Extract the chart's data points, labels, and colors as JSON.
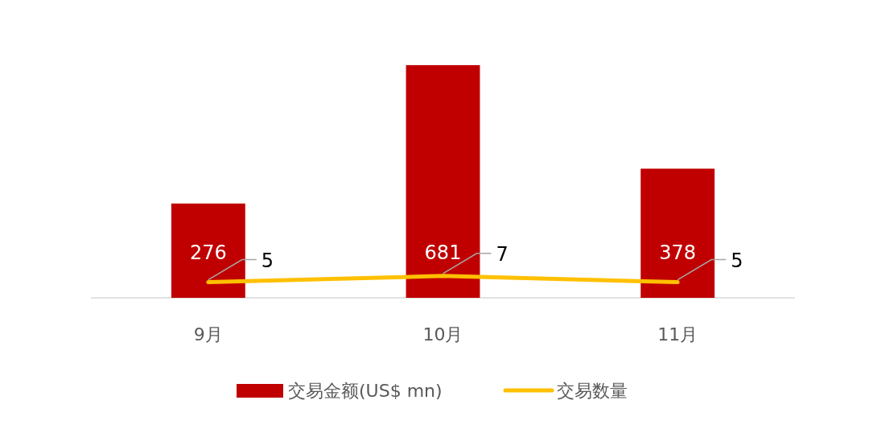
{
  "chart_data": {
    "type": "bar",
    "categories": [
      "9月",
      "10月",
      "11月"
    ],
    "series": [
      {
        "name": "交易金额(US$ mn)",
        "color": "#c00000",
        "values": [
          276,
          681,
          378
        ]
      },
      {
        "name": "交易数量",
        "type": "line",
        "axis": "y2",
        "color": "#ffc000",
        "values": [
          5,
          7,
          5
        ]
      }
    ],
    "tick_labels": "x",
    "data_labels": true,
    "legend": "bottom",
    "marker": "none"
  }
}
